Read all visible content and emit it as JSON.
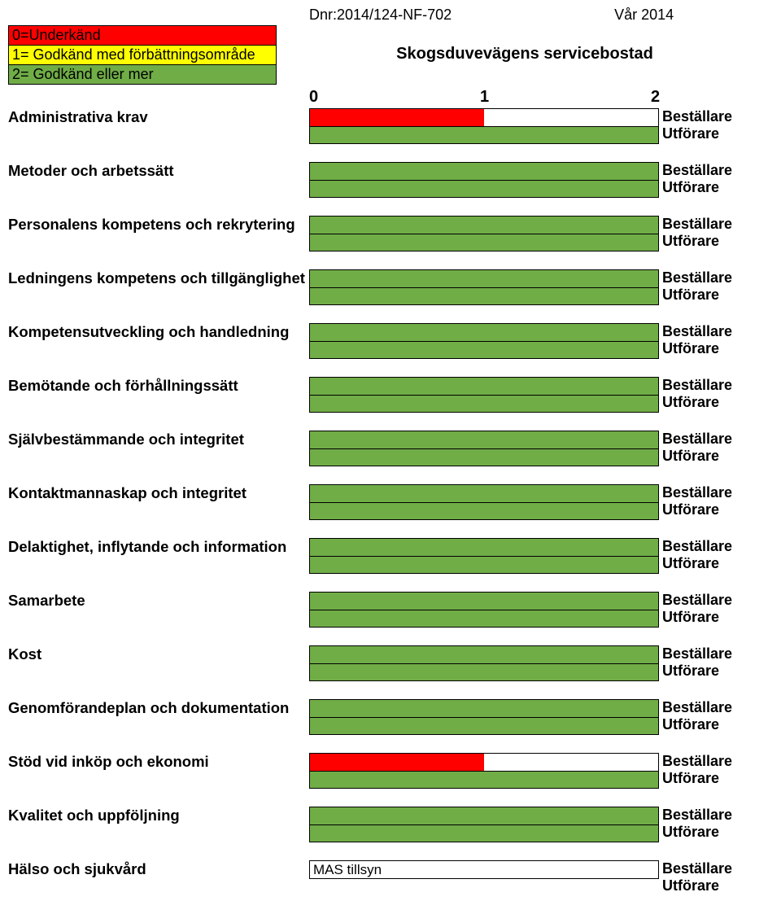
{
  "meta": {
    "dnr": "Dnr:2014/124-NF-702",
    "term": "Vår 2014"
  },
  "legend": [
    {
      "text": "0=Underkänd",
      "bg": "#ff0000"
    },
    {
      "text": "1= Godkänd med förbättningsområde",
      "bg": "#ffff00"
    },
    {
      "text": "2= Godkänd eller mer",
      "bg": "#70ad47"
    }
  ],
  "subtitle": "Skogsduvevägens servicebostad",
  "scale": [
    "0",
    "1",
    "2"
  ],
  "roles": [
    "Beställare",
    "Utförare"
  ],
  "green": "#70ad47",
  "red": "#ff0000",
  "categories": [
    {
      "label": "Administrativa krav",
      "bars": [
        {
          "v": 1,
          "c": "#ff0000"
        },
        {
          "v": 2,
          "c": "#70ad47"
        }
      ]
    },
    {
      "label": "Metoder och arbetssätt",
      "bars": [
        {
          "v": 2,
          "c": "#70ad47"
        },
        {
          "v": 2,
          "c": "#70ad47"
        }
      ]
    },
    {
      "label": "Personalens kompetens och rekrytering",
      "bars": [
        {
          "v": 2,
          "c": "#70ad47"
        },
        {
          "v": 2,
          "c": "#70ad47"
        }
      ]
    },
    {
      "label": "Ledningens kompetens och tillgänglighet",
      "bars": [
        {
          "v": 2,
          "c": "#70ad47"
        },
        {
          "v": 2,
          "c": "#70ad47"
        }
      ]
    },
    {
      "label": "Kompetensutveckling och handledning",
      "bars": [
        {
          "v": 2,
          "c": "#70ad47"
        },
        {
          "v": 2,
          "c": "#70ad47"
        }
      ]
    },
    {
      "label": "Bemötande och förhållningssätt",
      "bars": [
        {
          "v": 2,
          "c": "#70ad47"
        },
        {
          "v": 2,
          "c": "#70ad47"
        }
      ]
    },
    {
      "label": "Självbestämmande och integritet",
      "bars": [
        {
          "v": 2,
          "c": "#70ad47"
        },
        {
          "v": 2,
          "c": "#70ad47"
        }
      ]
    },
    {
      "label": "Kontaktmannaskap och integritet",
      "bars": [
        {
          "v": 2,
          "c": "#70ad47"
        },
        {
          "v": 2,
          "c": "#70ad47"
        }
      ]
    },
    {
      "label": "Delaktighet, inflytande och information",
      "bars": [
        {
          "v": 2,
          "c": "#70ad47"
        },
        {
          "v": 2,
          "c": "#70ad47"
        }
      ]
    },
    {
      "label": "Samarbete",
      "bars": [
        {
          "v": 2,
          "c": "#70ad47"
        },
        {
          "v": 2,
          "c": "#70ad47"
        }
      ]
    },
    {
      "label": "Kost",
      "bars": [
        {
          "v": 2,
          "c": "#70ad47"
        },
        {
          "v": 2,
          "c": "#70ad47"
        }
      ]
    },
    {
      "label": "Genomförandeplan och dokumentation",
      "bars": [
        {
          "v": 2,
          "c": "#70ad47"
        },
        {
          "v": 2,
          "c": "#70ad47"
        }
      ]
    },
    {
      "label": "Stöd vid inköp och ekonomi",
      "bars": [
        {
          "v": 1,
          "c": "#ff0000"
        },
        {
          "v": 2,
          "c": "#70ad47"
        }
      ]
    },
    {
      "label": "Kvalitet och uppföljning",
      "bars": [
        {
          "v": 2,
          "c": "#70ad47"
        },
        {
          "v": 2,
          "c": "#70ad47"
        }
      ]
    }
  ],
  "last": {
    "label": "Hälso och sjukvård",
    "note": "MAS tillsyn"
  }
}
